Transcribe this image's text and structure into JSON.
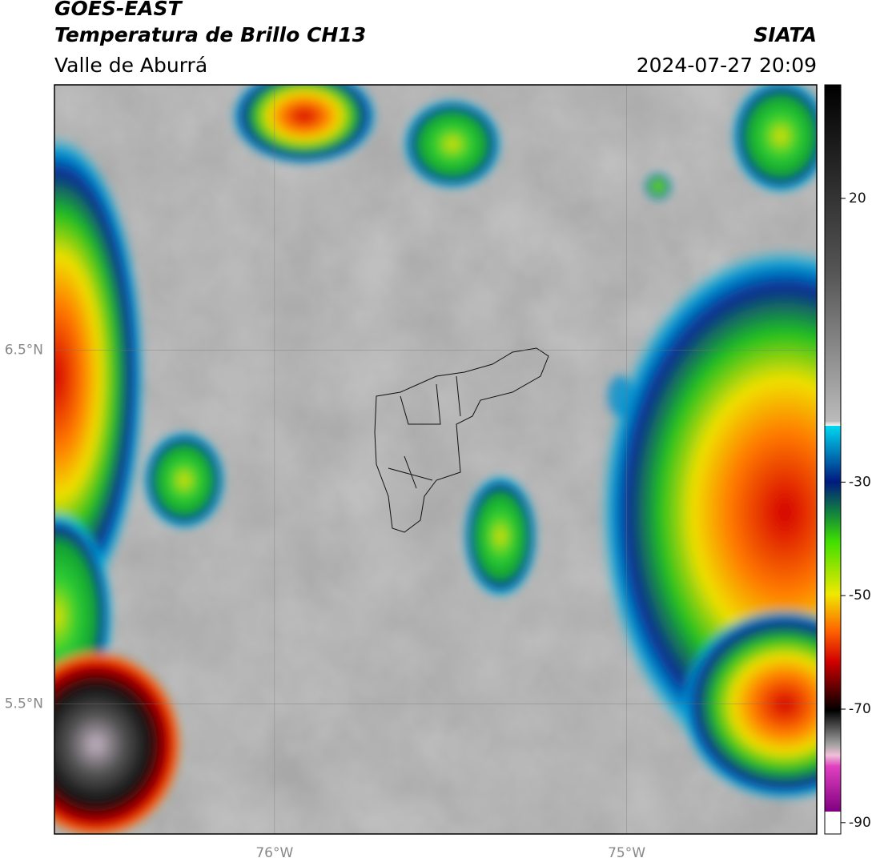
{
  "chart_data": {
    "type": "map",
    "title": "GOES-EAST",
    "subtitle": "Temperatura de Brillo CH13",
    "source": "SIATA",
    "region": "Valle de Aburrá",
    "timestamp": "2024-07-27 20:09",
    "xlim": [
      -76.625,
      -74.46
    ],
    "ylim": [
      5.133,
      7.25
    ],
    "xticks": [
      {
        "value": -76,
        "label": "76°W"
      },
      {
        "value": -75,
        "label": "75°W"
      }
    ],
    "yticks": [
      {
        "value": 6.5,
        "label": "6.5°N"
      },
      {
        "value": 5.5,
        "label": "5.5°N"
      }
    ],
    "grid": true,
    "colorbar": {
      "lim": [
        -92,
        40
      ],
      "ticks": [
        20,
        -30,
        -50,
        -70,
        -90
      ]
    }
  }
}
